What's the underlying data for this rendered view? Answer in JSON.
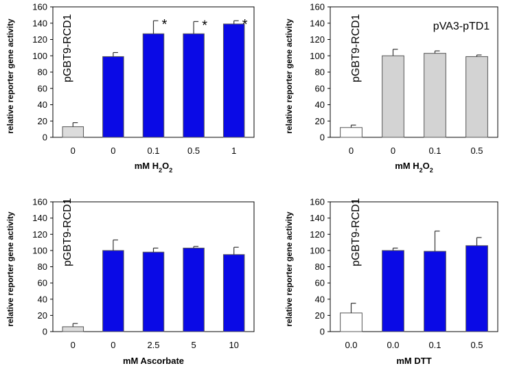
{
  "chart_data": [
    {
      "type": "bar",
      "ylabel": "relative reporter gene activity",
      "xlabel_parts": [
        [
          "mM H",
          ""
        ],
        [
          "2",
          "sub"
        ],
        [
          "O",
          ""
        ],
        [
          "2",
          "sub"
        ]
      ],
      "ylim": [
        0,
        160
      ],
      "yticks": [
        0,
        20,
        40,
        60,
        80,
        100,
        120,
        140,
        160
      ],
      "categories": [
        "0",
        "0",
        "0.1",
        "0.5",
        "1"
      ],
      "values": [
        13,
        99,
        127,
        127,
        139
      ],
      "errors": [
        5,
        5,
        16,
        15,
        4
      ],
      "colors": [
        "#dcdcdc",
        "#0a0ae6",
        "#0a0ae6",
        "#0a0ae6",
        "#0a0ae6"
      ],
      "significance": [
        "",
        "",
        "*",
        "*",
        "*"
      ],
      "annotation": "pGBT9-RCD1",
      "annotation_orientation": "vertical"
    },
    {
      "type": "bar",
      "ylabel": "relative reporter gene activity",
      "xlabel_parts": [
        [
          "mM H",
          ""
        ],
        [
          "2",
          "sub"
        ],
        [
          "O",
          ""
        ],
        [
          "2",
          "sub"
        ]
      ],
      "ylim": [
        0,
        160
      ],
      "yticks": [
        0,
        20,
        40,
        60,
        80,
        100,
        120,
        140,
        160
      ],
      "categories": [
        "0",
        "0",
        "0.1",
        "0.5"
      ],
      "values": [
        12,
        100,
        103,
        99
      ],
      "errors": [
        3,
        8,
        3,
        2
      ],
      "colors": [
        "#ffffff",
        "#d3d3d3",
        "#d3d3d3",
        "#d3d3d3"
      ],
      "significance": [
        "",
        "",
        "",
        ""
      ],
      "annotation": "pGBT9-RCD1",
      "annotation_orientation": "vertical",
      "annotation2": "pVA3-pTD1"
    },
    {
      "type": "bar",
      "ylabel": "relative reporter gene activity",
      "xlabel_parts": [
        [
          "mM Ascorbate",
          ""
        ]
      ],
      "ylim": [
        0,
        160
      ],
      "yticks": [
        0,
        20,
        40,
        60,
        80,
        100,
        120,
        140,
        160
      ],
      "categories": [
        "0",
        "0",
        "2.5",
        "5",
        "10"
      ],
      "values": [
        6,
        100,
        98,
        103,
        95
      ],
      "errors": [
        4,
        13,
        5,
        2,
        9
      ],
      "colors": [
        "#dcdcdc",
        "#0a0ae6",
        "#0a0ae6",
        "#0a0ae6",
        "#0a0ae6"
      ],
      "significance": [
        "",
        "",
        "",
        "",
        ""
      ],
      "annotation": "pGBT9-RCD1",
      "annotation_orientation": "vertical"
    },
    {
      "type": "bar",
      "ylabel": "relative reporter gene activity",
      "xlabel_parts": [
        [
          "mM DTT",
          ""
        ]
      ],
      "ylim": [
        0,
        160
      ],
      "yticks": [
        0,
        20,
        40,
        60,
        80,
        100,
        120,
        140,
        160
      ],
      "categories": [
        "0.0",
        "0.0",
        "0.1",
        "0.5"
      ],
      "values": [
        23,
        100,
        99,
        106
      ],
      "errors": [
        12,
        3,
        25,
        10
      ],
      "colors": [
        "#ffffff",
        "#0a0ae6",
        "#0a0ae6",
        "#0a0ae6"
      ],
      "significance": [
        "",
        "",
        "",
        ""
      ],
      "annotation": "pGBT9-RCD1",
      "annotation_orientation": "vertical"
    }
  ]
}
